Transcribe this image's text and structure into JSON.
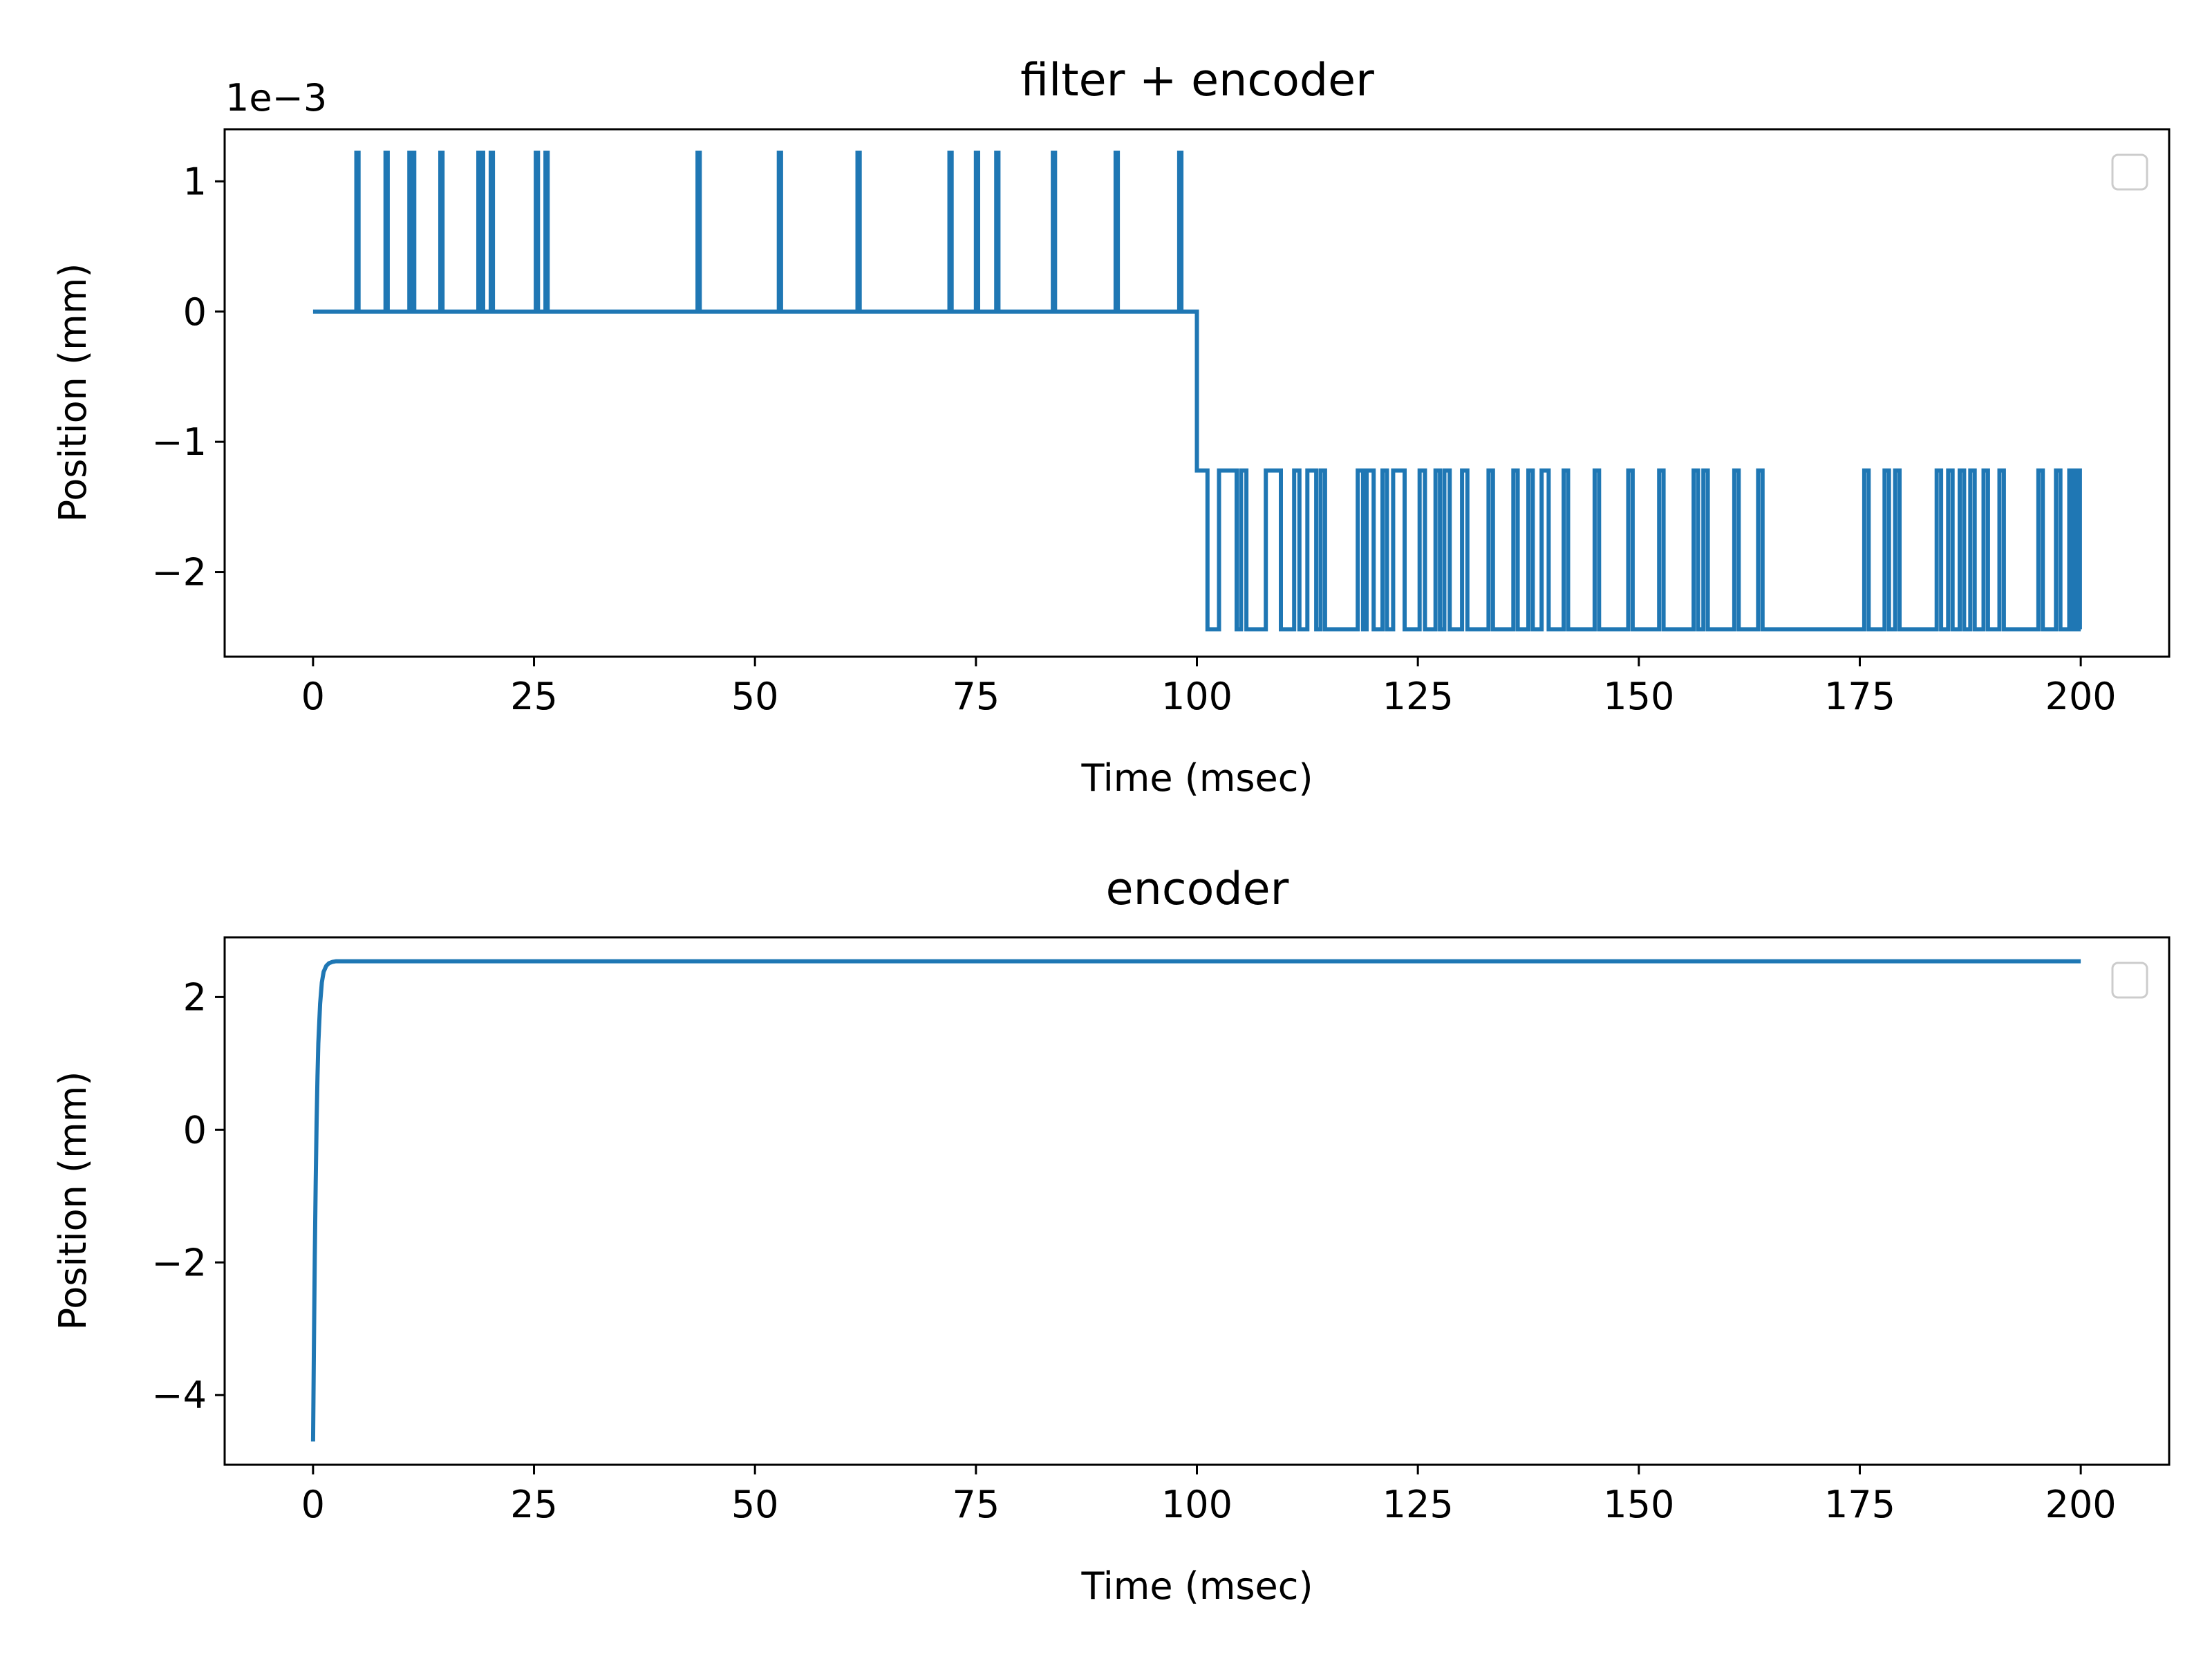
{
  "chart_data": [
    {
      "type": "line",
      "title": "filter + encoder",
      "xlabel": "Time (msec)",
      "ylabel": "Position (mm)",
      "y_offset_label": "1e−3",
      "xlim": [
        -10,
        210
      ],
      "ylim": [
        -2.65,
        1.4
      ],
      "x_ticks": [
        0,
        25,
        50,
        75,
        100,
        125,
        150,
        175,
        200
      ],
      "x_tick_labels": [
        "0",
        "25",
        "50",
        "75",
        "100",
        "125",
        "150",
        "175",
        "200"
      ],
      "y_ticks": [
        1,
        0,
        -1,
        -2
      ],
      "y_tick_labels": [
        "1",
        "0",
        "−1",
        "−2"
      ],
      "grid": false,
      "legend": "upper right (empty)",
      "series": [
        {
          "color": "#1f77b4",
          "levels": {
            "high": 1.22,
            "base": 0,
            "step_mid": -1.22,
            "low": -2.44
          },
          "step_down": [
            100,
            101.2
          ],
          "spikes_up": [
            4.9,
            8.2,
            10.9,
            11.2,
            14.4,
            18.7,
            19.0,
            20.1,
            25.2,
            26.3,
            43.5,
            52.7,
            61.6,
            72.0,
            75.0,
            77.3,
            83.7,
            90.8,
            98.0
          ],
          "pulses_up_to_mid": [
            [
              102.5,
              104.5
            ],
            [
              105.0,
              105.6
            ],
            [
              107.8,
              109.5
            ],
            [
              111.0,
              111.6
            ],
            [
              112.5,
              113.5
            ],
            [
              114.0,
              114.5
            ],
            [
              118.2,
              118.8
            ],
            [
              119.2,
              120.0
            ],
            [
              121.0,
              121.5
            ],
            [
              122.2,
              123.5
            ],
            [
              125.2,
              125.8
            ],
            [
              127.0,
              127.5
            ],
            [
              128.0,
              128.6
            ],
            [
              130.0,
              130.6
            ],
            [
              133.0,
              133.5
            ],
            [
              135.8,
              136.3
            ],
            [
              137.5,
              138.0
            ],
            [
              139.0,
              139.8
            ],
            [
              141.5,
              142.0
            ],
            [
              145.0,
              145.5
            ],
            [
              148.8,
              149.3
            ],
            [
              152.3,
              152.8
            ],
            [
              156.2,
              156.7
            ],
            [
              157.3,
              157.8
            ],
            [
              160.8,
              161.3
            ],
            [
              163.5,
              164.0
            ],
            [
              175.5,
              176.0
            ],
            [
              177.8,
              178.3
            ],
            [
              179.0,
              179.5
            ],
            [
              183.7,
              184.2
            ],
            [
              185.0,
              185.5
            ],
            [
              186.3,
              186.8
            ],
            [
              187.5,
              188.0
            ],
            [
              189.0,
              189.5
            ],
            [
              190.8,
              191.3
            ],
            [
              195.2,
              195.7
            ],
            [
              197.2,
              197.7
            ],
            [
              198.7,
              199.1
            ],
            [
              199.5,
              199.9
            ]
          ],
          "x_end": 200
        }
      ]
    },
    {
      "type": "line",
      "title": "encoder",
      "xlabel": "Time (msec)",
      "ylabel": "Position (mm)",
      "xlim": [
        -10,
        210
      ],
      "ylim": [
        -5.05,
        2.9
      ],
      "x_ticks": [
        0,
        25,
        50,
        75,
        100,
        125,
        150,
        175,
        200
      ],
      "x_tick_labels": [
        "0",
        "25",
        "50",
        "75",
        "100",
        "125",
        "150",
        "175",
        "200"
      ],
      "y_ticks": [
        2,
        0,
        -2,
        -4
      ],
      "y_tick_labels": [
        "2",
        "0",
        "−2",
        "−4"
      ],
      "grid": false,
      "legend": "upper right (empty)",
      "series": [
        {
          "color": "#1f77b4",
          "x": [
            0,
            0.1,
            0.2,
            0.3,
            0.4,
            0.5,
            0.6,
            0.8,
            1.0,
            1.2,
            1.5,
            1.8,
            2.2,
            2.6,
            3.0,
            5,
            10,
            50,
            100,
            150,
            200
          ],
          "y": [
            -4.7,
            -3.3,
            -1.9,
            -0.8,
            0.1,
            0.8,
            1.3,
            1.9,
            2.22,
            2.38,
            2.47,
            2.51,
            2.53,
            2.54,
            2.54,
            2.54,
            2.54,
            2.54,
            2.54,
            2.54,
            2.54
          ]
        }
      ]
    }
  ]
}
